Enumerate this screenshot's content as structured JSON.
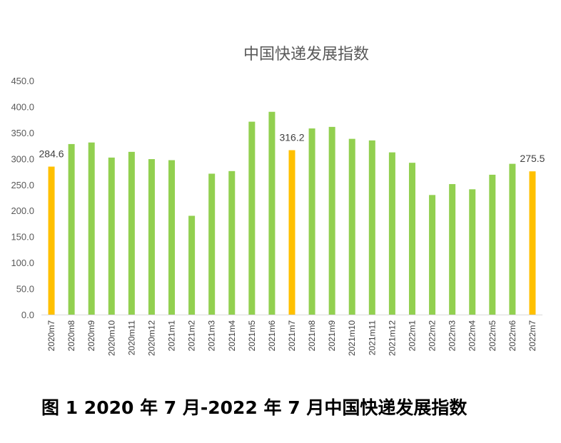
{
  "chart_data": {
    "type": "bar",
    "title": "中国快递发展指数",
    "categories": [
      "2020m7",
      "2020m8",
      "2020m9",
      "2020m10",
      "2020m11",
      "2020m12",
      "2021m1",
      "2021m2",
      "2021m3",
      "2021m4",
      "2021m5",
      "2021m6",
      "2021m7",
      "2021m8",
      "2021m9",
      "2021m10",
      "2021m11",
      "2021m12",
      "2022m1",
      "2022m2",
      "2022m3",
      "2022m4",
      "2022m5",
      "2022m6",
      "2022m7"
    ],
    "values": [
      284.6,
      328,
      331,
      302,
      313,
      299,
      297,
      190,
      271,
      276,
      371,
      390,
      316.2,
      358,
      361,
      338,
      335,
      312,
      292,
      230,
      251,
      241,
      269,
      290,
      275.5
    ],
    "highlighted": [
      "2020m7",
      "2021m7",
      "2022m7"
    ],
    "data_labels": [
      {
        "category": "2020m7",
        "text": "284.6"
      },
      {
        "category": "2021m7",
        "text": "316.2"
      },
      {
        "category": "2022m7",
        "text": "275.5"
      }
    ],
    "yticks": [
      "0.0",
      "50.0",
      "100.0",
      "150.0",
      "200.0",
      "250.0",
      "300.0",
      "350.0",
      "400.0",
      "450.0"
    ],
    "ylim": [
      0,
      450
    ],
    "xlabel": "",
    "ylabel": "",
    "grid": false,
    "colors": {
      "normal": "#92D050",
      "highlight": "#FFC000",
      "axis": "#D9D9D9"
    }
  },
  "caption": "图 1 2020 年 7 月-2022 年 7 月中国快递发展指数"
}
